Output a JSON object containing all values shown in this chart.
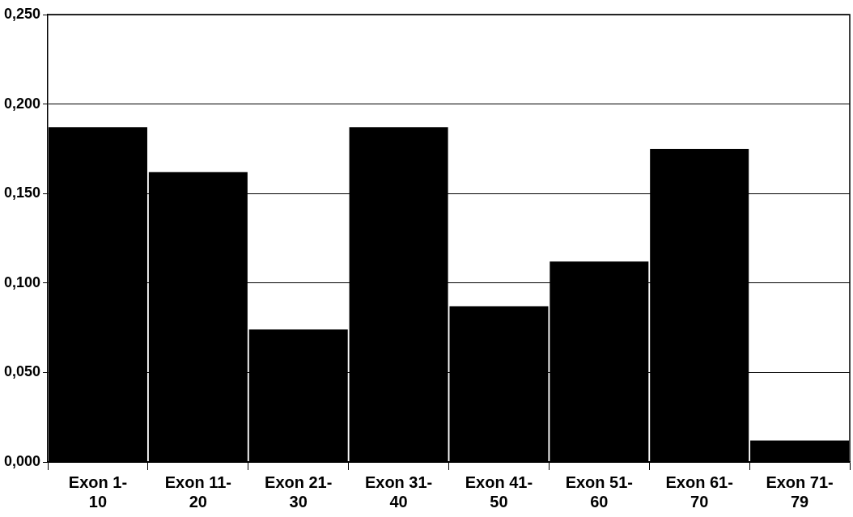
{
  "chart_data": {
    "type": "bar",
    "categories": [
      "Exon 1-10",
      "Exon 11-20",
      "Exon 21-30",
      "Exon 31-40",
      "Exon 41-50",
      "Exon 51-60",
      "Exon 61-70",
      "Exon 71-79"
    ],
    "values": [
      0.187,
      0.162,
      0.074,
      0.187,
      0.087,
      0.112,
      0.175,
      0.012
    ],
    "color": "#000000",
    "ylim": [
      0,
      0.25
    ],
    "yticks": [
      {
        "value": 0,
        "label": "0,000"
      },
      {
        "value": 0.05,
        "label": "0,050"
      },
      {
        "value": 0.1,
        "label": "0,100"
      },
      {
        "value": 0.15,
        "label": "0,150"
      },
      {
        "value": 0.2,
        "label": "0,200"
      },
      {
        "value": 0.25,
        "label": "0,250"
      }
    ],
    "grid": "y",
    "legend": false
  }
}
